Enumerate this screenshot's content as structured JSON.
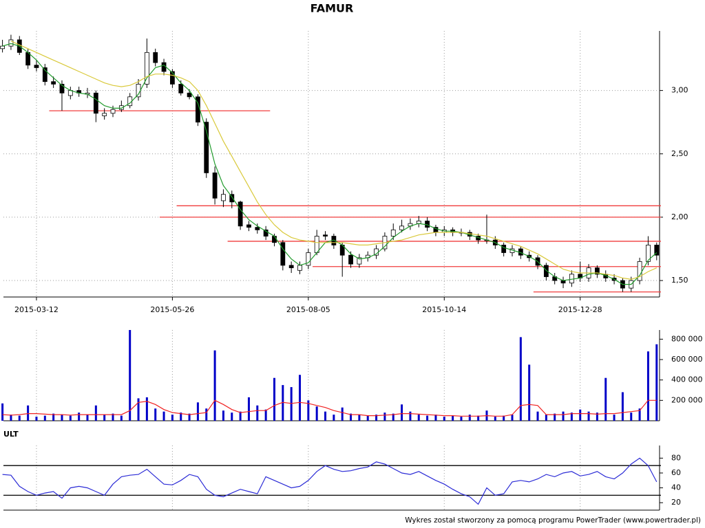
{
  "chart_data": [
    {
      "type": "candlestick",
      "title": "FAMUR",
      "categories": [
        null,
        null,
        null,
        null,
        "2015-03-12",
        null,
        null,
        null,
        null,
        null,
        null,
        null,
        null,
        null,
        null,
        null,
        null,
        null,
        null,
        null,
        "2015-05-26",
        null,
        null,
        null,
        null,
        null,
        null,
        null,
        null,
        null,
        null,
        null,
        null,
        null,
        null,
        null,
        "2015-08-05",
        null,
        null,
        null,
        null,
        null,
        null,
        null,
        null,
        null,
        null,
        null,
        null,
        null,
        null,
        null,
        "2015-10-14",
        null,
        null,
        null,
        null,
        null,
        null,
        null,
        null,
        null,
        null,
        null,
        null,
        null,
        null,
        null,
        "2015-12-28",
        null,
        null,
        null,
        null,
        null,
        null,
        null,
        null,
        null
      ],
      "open": [
        3.33,
        3.35,
        3.4,
        3.3,
        3.2,
        3.18,
        3.07,
        3.05,
        2.96,
        3.0,
        2.97,
        2.98,
        2.8,
        2.82,
        2.85,
        2.88,
        2.95,
        3.05,
        3.3,
        3.22,
        3.15,
        3.05,
        2.98,
        2.95,
        2.75,
        2.35,
        2.13,
        2.18,
        2.12,
        1.94,
        1.92,
        1.9,
        1.85,
        1.8,
        1.62,
        1.58,
        1.62,
        1.72,
        1.86,
        1.85,
        1.78,
        1.7,
        1.63,
        1.68,
        1.7,
        1.75,
        1.85,
        1.9,
        1.93,
        1.95,
        1.97,
        1.92,
        1.88,
        1.9,
        1.88,
        1.88,
        1.85,
        1.82,
        1.82,
        1.78,
        1.72,
        1.75,
        1.7,
        1.68,
        1.62,
        1.53,
        1.5,
        1.48,
        1.55,
        1.52,
        1.6,
        1.55,
        1.52,
        1.5,
        1.44,
        1.5,
        1.65,
        1.78
      ],
      "high": [
        3.4,
        3.44,
        3.43,
        3.33,
        3.24,
        3.21,
        3.11,
        3.08,
        3.03,
        3.03,
        3.02,
        3.0,
        2.86,
        2.88,
        2.92,
        2.98,
        3.09,
        3.41,
        3.33,
        3.25,
        3.17,
        3.08,
        3.01,
        2.97,
        2.78,
        2.4,
        2.22,
        2.21,
        2.13,
        1.97,
        1.95,
        1.93,
        1.87,
        1.82,
        1.65,
        1.65,
        1.75,
        1.9,
        1.89,
        1.87,
        1.8,
        1.73,
        1.71,
        1.73,
        1.78,
        1.88,
        1.95,
        1.98,
        1.99,
        2.01,
        2.0,
        1.94,
        1.93,
        1.92,
        1.91,
        1.9,
        1.87,
        2.02,
        1.85,
        1.8,
        1.78,
        1.77,
        1.73,
        1.7,
        1.64,
        1.56,
        1.53,
        1.58,
        1.65,
        1.63,
        1.62,
        1.58,
        1.55,
        1.52,
        1.53,
        1.68,
        1.85,
        1.8
      ],
      "low": [
        3.3,
        3.32,
        3.28,
        3.17,
        3.15,
        3.04,
        3.02,
        2.84,
        2.93,
        2.95,
        2.94,
        2.75,
        2.77,
        2.79,
        2.83,
        2.86,
        2.92,
        3.02,
        3.19,
        3.12,
        3.02,
        2.96,
        2.93,
        2.72,
        2.31,
        2.1,
        2.08,
        2.07,
        1.9,
        1.89,
        1.87,
        1.82,
        1.77,
        1.58,
        1.56,
        1.55,
        1.59,
        1.7,
        1.82,
        1.75,
        1.53,
        1.6,
        1.6,
        1.65,
        1.67,
        1.73,
        1.82,
        1.88,
        1.9,
        1.92,
        1.89,
        1.85,
        1.85,
        1.85,
        1.85,
        1.82,
        1.79,
        1.79,
        1.75,
        1.69,
        1.69,
        1.67,
        1.65,
        1.59,
        1.5,
        1.47,
        1.44,
        1.45,
        1.49,
        1.49,
        1.52,
        1.49,
        1.47,
        1.41,
        1.41,
        1.47,
        1.62,
        1.66
      ],
      "close": [
        3.35,
        3.4,
        3.3,
        3.2,
        3.18,
        3.07,
        3.05,
        2.98,
        3.0,
        2.98,
        2.98,
        2.82,
        2.82,
        2.85,
        2.88,
        2.95,
        3.05,
        3.3,
        3.22,
        3.15,
        3.05,
        2.98,
        2.95,
        2.75,
        2.35,
        2.15,
        2.18,
        2.12,
        1.93,
        1.92,
        1.9,
        1.85,
        1.8,
        1.62,
        1.6,
        1.62,
        1.72,
        1.85,
        1.85,
        1.78,
        1.7,
        1.63,
        1.68,
        1.7,
        1.75,
        1.85,
        1.9,
        1.93,
        1.95,
        1.97,
        1.92,
        1.88,
        1.9,
        1.88,
        1.88,
        1.85,
        1.82,
        1.82,
        1.78,
        1.72,
        1.75,
        1.7,
        1.68,
        1.62,
        1.53,
        1.5,
        1.48,
        1.55,
        1.52,
        1.6,
        1.55,
        1.52,
        1.5,
        1.44,
        1.5,
        1.65,
        1.78,
        1.7
      ],
      "overlays": [
        {
          "color": "#1f9a2a",
          "values": [
            3.35,
            3.37,
            3.35,
            3.3,
            3.24,
            3.16,
            3.1,
            3.04,
            3.0,
            2.98,
            2.97,
            2.93,
            2.88,
            2.86,
            2.86,
            2.9,
            2.97,
            3.1,
            3.18,
            3.2,
            3.14,
            3.06,
            3.0,
            2.9,
            2.68,
            2.42,
            2.25,
            2.16,
            2.06,
            1.98,
            1.93,
            1.89,
            1.85,
            1.75,
            1.67,
            1.62,
            1.64,
            1.72,
            1.8,
            1.82,
            1.78,
            1.71,
            1.67,
            1.68,
            1.71,
            1.77,
            1.84,
            1.89,
            1.93,
            1.95,
            1.94,
            1.91,
            1.89,
            1.89,
            1.88,
            1.86,
            1.84,
            1.82,
            1.8,
            1.76,
            1.74,
            1.72,
            1.69,
            1.65,
            1.58,
            1.53,
            1.5,
            1.51,
            1.52,
            1.55,
            1.56,
            1.54,
            1.51,
            1.47,
            1.47,
            1.54,
            1.66,
            1.72
          ]
        },
        {
          "color": "#d9c93a",
          "values": [
            null,
            3.39,
            3.36,
            3.33,
            3.3,
            3.27,
            3.24,
            3.21,
            3.18,
            3.15,
            3.12,
            3.09,
            3.06,
            3.04,
            3.03,
            3.04,
            3.07,
            3.11,
            3.13,
            3.13,
            3.12,
            3.1,
            3.07,
            3.0,
            2.88,
            2.74,
            2.6,
            2.48,
            2.36,
            2.24,
            2.12,
            2.02,
            1.94,
            1.88,
            1.84,
            1.82,
            1.81,
            1.8,
            1.8,
            1.8,
            1.8,
            1.79,
            1.78,
            1.78,
            1.79,
            1.8,
            1.81,
            1.82,
            1.84,
            1.86,
            1.87,
            1.88,
            1.88,
            1.88,
            1.88,
            1.87,
            1.86,
            1.85,
            1.83,
            1.81,
            1.79,
            1.77,
            1.74,
            1.71,
            1.67,
            1.63,
            1.59,
            1.57,
            1.56,
            1.56,
            1.56,
            1.55,
            1.54,
            1.52,
            1.51,
            1.53,
            1.57,
            1.6
          ]
        }
      ],
      "levels": [
        {
          "value": 2.84,
          "from": 6,
          "to": 31
        },
        {
          "value": 2.09,
          "from": 21
        },
        {
          "value": 2.0,
          "from": 19
        },
        {
          "value": 1.81,
          "from": 27
        },
        {
          "value": 1.61,
          "from": 37
        },
        {
          "value": 1.41,
          "from": 63
        }
      ],
      "level_color": "#f03c3c",
      "ylim": [
        1.37,
        3.47
      ],
      "yticks": [
        {
          "value": 1.5,
          "label": "1,50"
        },
        {
          "value": 2,
          "label": "2,00"
        },
        {
          "value": 2.5,
          "label": "2,50"
        },
        {
          "value": 3,
          "label": "3,00"
        }
      ],
      "grid": true
    },
    {
      "type": "bar",
      "color": "#0000c8",
      "values": [
        170000,
        60000,
        50000,
        150000,
        40000,
        50000,
        70000,
        60000,
        50000,
        80000,
        60000,
        150000,
        60000,
        70000,
        50000,
        890000,
        220000,
        230000,
        120000,
        90000,
        60000,
        80000,
        70000,
        180000,
        120000,
        690000,
        100000,
        80000,
        90000,
        230000,
        150000,
        110000,
        420000,
        350000,
        330000,
        450000,
        200000,
        140000,
        90000,
        60000,
        130000,
        70000,
        60000,
        50000,
        60000,
        80000,
        70000,
        160000,
        90000,
        60000,
        50000,
        60000,
        40000,
        50000,
        40000,
        60000,
        50000,
        100000,
        40000,
        50000,
        60000,
        820000,
        550000,
        90000,
        60000,
        70000,
        90000,
        80000,
        110000,
        90000,
        80000,
        420000,
        60000,
        280000,
        80000,
        120000,
        680000,
        750000
      ],
      "overlays": [
        {
          "color": "#f02020",
          "values": [
            60000,
            55000,
            60000,
            70000,
            70000,
            65000,
            60000,
            60000,
            55000,
            60000,
            60000,
            60000,
            60000,
            60000,
            60000,
            100000,
            180000,
            190000,
            160000,
            110000,
            80000,
            70000,
            60000,
            70000,
            80000,
            200000,
            160000,
            110000,
            80000,
            90000,
            100000,
            100000,
            150000,
            180000,
            170000,
            180000,
            170000,
            150000,
            130000,
            100000,
            80000,
            60000,
            60000,
            50000,
            50000,
            55000,
            60000,
            70000,
            70000,
            65000,
            60000,
            55000,
            50000,
            50000,
            45000,
            45000,
            45000,
            50000,
            45000,
            45000,
            60000,
            150000,
            160000,
            150000,
            60000,
            60000,
            60000,
            70000,
            70000,
            70000,
            65000,
            70000,
            70000,
            80000,
            90000,
            100000,
            200000,
            200000
          ]
        }
      ],
      "ylim": [
        0,
        890000
      ],
      "yticks": [
        {
          "value": 200000,
          "label": "200 000"
        },
        {
          "value": 400000,
          "label": "400 000"
        },
        {
          "value": 600000,
          "label": "600 000"
        },
        {
          "value": 800000,
          "label": "800 000"
        }
      ],
      "grid": false
    },
    {
      "type": "line",
      "title": "ULT",
      "color": "#2b2bd6",
      "values": [
        58,
        57,
        42,
        35,
        30,
        33,
        35,
        26,
        40,
        42,
        40,
        35,
        30,
        45,
        55,
        57,
        58,
        65,
        55,
        45,
        44,
        50,
        58,
        55,
        38,
        30,
        28,
        33,
        38,
        35,
        32,
        55,
        50,
        45,
        40,
        42,
        50,
        62,
        70,
        65,
        62,
        63,
        66,
        68,
        75,
        72,
        66,
        60,
        58,
        62,
        56,
        50,
        45,
        38,
        32,
        28,
        18,
        40,
        30,
        32,
        48,
        50,
        48,
        52,
        58,
        55,
        60,
        62,
        56,
        58,
        62,
        55,
        52,
        60,
        72,
        80,
        70,
        48
      ],
      "levels": [
        {
          "value": 70
        },
        {
          "value": 30
        }
      ],
      "level_color": "#000000",
      "ylim": [
        10,
        97
      ],
      "yticks": [
        20,
        40,
        60,
        80
      ],
      "grid": false
    }
  ],
  "footer": "Wykres został stworzony za pomocą programu PowerTrader (www.powertrader.pl)"
}
